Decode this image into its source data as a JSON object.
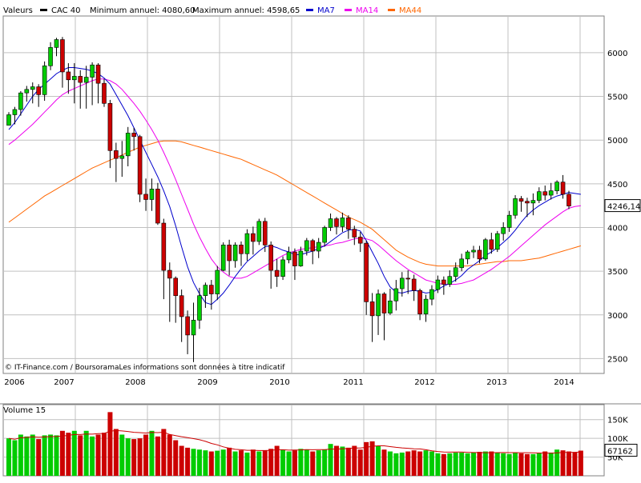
{
  "chart_data": [
    {
      "type": "candlestick",
      "header": {
        "label": "Valeurs",
        "instrument": "CAC 40",
        "min_text": "Minimum annuel: 4080,60",
        "max_text": "Maximum annuel: 4598,65",
        "legend": [
          {
            "name": "MA7",
            "color": "#0000cc"
          },
          {
            "name": "MA14",
            "color": "#ee00ee"
          },
          {
            "name": "MA44",
            "color": "#ff6600"
          }
        ]
      },
      "x_tick_labels": [
        "2006",
        "2007",
        "2008",
        "2009",
        "2010",
        "2011",
        "2012",
        "2013",
        "2014"
      ],
      "y_ticks": [
        2500,
        3000,
        3500,
        4000,
        4500,
        5000,
        5500,
        6000
      ],
      "ylim": [
        2330,
        6420
      ],
      "last_value": 4246.14,
      "last_value_label": "4246,14",
      "credit": "© IT-Finance.com / BoursoramaLes informations sont données à titre indicatif",
      "colors": {
        "up": "#00cc00",
        "down": "#cc0000",
        "grid": "#c0c0c0"
      },
      "candles": [
        [
          5170,
          5290,
          5320,
          5170
        ],
        [
          5290,
          5350,
          5380,
          5180
        ],
        [
          5350,
          5540,
          5560,
          5280
        ],
        [
          5540,
          5580,
          5620,
          5440
        ],
        [
          5580,
          5610,
          5660,
          5420
        ],
        [
          5610,
          5520,
          5640,
          5380
        ],
        [
          5520,
          5850,
          5900,
          5450
        ],
        [
          5850,
          6060,
          6120,
          5800
        ],
        [
          6060,
          6150,
          6170,
          5960
        ],
        [
          6150,
          5780,
          6180,
          5600
        ],
        [
          5780,
          5690,
          5880,
          5530
        ],
        [
          5690,
          5730,
          5880,
          5420
        ],
        [
          5730,
          5660,
          5800,
          5360
        ],
        [
          5660,
          5720,
          5850,
          5360
        ],
        [
          5720,
          5860,
          5890,
          5400
        ],
        [
          5860,
          5650,
          5880,
          5420
        ],
        [
          5650,
          5420,
          5700,
          5380
        ],
        [
          5420,
          4880,
          5460,
          4680
        ],
        [
          4880,
          4790,
          4970,
          4520
        ],
        [
          4790,
          4820,
          4990,
          4580
        ],
        [
          4820,
          5080,
          5150,
          4700
        ],
        [
          5080,
          5040,
          5140,
          4880
        ],
        [
          5040,
          4380,
          5060,
          4290
        ],
        [
          4380,
          4320,
          4560,
          4190
        ],
        [
          4320,
          4440,
          4560,
          4190
        ],
        [
          4440,
          4050,
          4510,
          4030
        ],
        [
          4050,
          3510,
          4100,
          3180
        ],
        [
          3510,
          3420,
          3600,
          2920
        ],
        [
          3420,
          3220,
          3440,
          2910
        ],
        [
          3220,
          2980,
          3290,
          2690
        ],
        [
          2980,
          2770,
          3050,
          2550
        ],
        [
          2770,
          2940,
          3140,
          2460
        ],
        [
          2940,
          3220,
          3310,
          2840
        ],
        [
          3220,
          3340,
          3370,
          3080
        ],
        [
          3340,
          3240,
          3400,
          3060
        ],
        [
          3240,
          3510,
          3560,
          3170
        ],
        [
          3510,
          3800,
          3830,
          3500
        ],
        [
          3800,
          3620,
          3860,
          3450
        ],
        [
          3620,
          3800,
          3830,
          3540
        ],
        [
          3800,
          3700,
          3840,
          3560
        ],
        [
          3700,
          3930,
          3980,
          3620
        ],
        [
          3930,
          3840,
          4010,
          3690
        ],
        [
          3840,
          4070,
          4100,
          3800
        ],
        [
          4070,
          3800,
          4110,
          3720
        ],
        [
          3800,
          3510,
          3840,
          3300
        ],
        [
          3510,
          3440,
          3640,
          3320
        ],
        [
          3440,
          3630,
          3670,
          3400
        ],
        [
          3630,
          3720,
          3780,
          3590
        ],
        [
          3720,
          3560,
          3760,
          3400
        ],
        [
          3560,
          3730,
          3780,
          3550
        ],
        [
          3730,
          3850,
          3880,
          3680
        ],
        [
          3850,
          3730,
          3870,
          3580
        ],
        [
          3730,
          3830,
          3880,
          3650
        ],
        [
          3830,
          4000,
          4020,
          3780
        ],
        [
          4000,
          4100,
          4160,
          3960
        ],
        [
          4100,
          4010,
          4120,
          3920
        ],
        [
          4010,
          4110,
          4170,
          3950
        ],
        [
          4110,
          3980,
          4140,
          3870
        ],
        [
          3980,
          3890,
          4020,
          3800
        ],
        [
          3890,
          3820,
          3950,
          3720
        ],
        [
          3820,
          3150,
          3850,
          3000
        ],
        [
          3150,
          2990,
          3250,
          2690
        ],
        [
          2990,
          3240,
          3290,
          2770
        ],
        [
          3240,
          3020,
          3260,
          2710
        ],
        [
          3020,
          3160,
          3300,
          3000
        ],
        [
          3160,
          3300,
          3400,
          3050
        ],
        [
          3300,
          3420,
          3490,
          3210
        ],
        [
          3420,
          3410,
          3510,
          3240
        ],
        [
          3410,
          3280,
          3460,
          3160
        ],
        [
          3280,
          3010,
          3300,
          2940
        ],
        [
          3010,
          3180,
          3230,
          2920
        ],
        [
          3180,
          3290,
          3340,
          3110
        ],
        [
          3290,
          3400,
          3450,
          3250
        ],
        [
          3400,
          3350,
          3440,
          3230
        ],
        [
          3350,
          3440,
          3510,
          3320
        ],
        [
          3440,
          3540,
          3600,
          3380
        ],
        [
          3540,
          3640,
          3700,
          3500
        ],
        [
          3640,
          3720,
          3740,
          3580
        ],
        [
          3720,
          3740,
          3790,
          3650
        ],
        [
          3740,
          3640,
          3790,
          3590
        ],
        [
          3640,
          3860,
          3880,
          3620
        ],
        [
          3860,
          3750,
          3940,
          3700
        ],
        [
          3750,
          3930,
          3960,
          3720
        ],
        [
          3930,
          4000,
          4060,
          3850
        ],
        [
          4000,
          4140,
          4190,
          3950
        ],
        [
          4140,
          4330,
          4370,
          4100
        ],
        [
          4330,
          4300,
          4360,
          4180
        ],
        [
          4300,
          4280,
          4340,
          4120
        ],
        [
          4280,
          4310,
          4390,
          4140
        ],
        [
          4310,
          4410,
          4460,
          4280
        ],
        [
          4410,
          4370,
          4480,
          4310
        ],
        [
          4370,
          4420,
          4510,
          4320
        ],
        [
          4420,
          4520,
          4540,
          4380
        ],
        [
          4520,
          4380,
          4600,
          4330
        ],
        [
          4380,
          4246,
          4420,
          4210
        ]
      ],
      "ma7": [
        5120,
        5200,
        5300,
        5400,
        5500,
        5580,
        5640,
        5700,
        5760,
        5800,
        5830,
        5830,
        5820,
        5810,
        5790,
        5760,
        5710,
        5640,
        5520,
        5400,
        5280,
        5140,
        5000,
        4860,
        4720,
        4580,
        4420,
        4240,
        4020,
        3780,
        3550,
        3370,
        3240,
        3140,
        3120,
        3180,
        3250,
        3340,
        3440,
        3530,
        3610,
        3670,
        3730,
        3780,
        3790,
        3770,
        3740,
        3720,
        3690,
        3690,
        3710,
        3730,
        3760,
        3790,
        3840,
        3890,
        3940,
        3970,
        3980,
        3960,
        3850,
        3720,
        3590,
        3440,
        3320,
        3260,
        3250,
        3270,
        3280,
        3270,
        3250,
        3260,
        3290,
        3330,
        3360,
        3400,
        3450,
        3520,
        3570,
        3620,
        3680,
        3720,
        3770,
        3830,
        3890,
        3970,
        4060,
        4140,
        4200,
        4250,
        4290,
        4330,
        4360,
        4380,
        4400,
        4390,
        4380
      ],
      "ma14": [
        4950,
        5000,
        5060,
        5120,
        5180,
        5250,
        5320,
        5390,
        5460,
        5520,
        5560,
        5590,
        5620,
        5650,
        5680,
        5700,
        5700,
        5680,
        5640,
        5580,
        5500,
        5420,
        5330,
        5230,
        5120,
        5000,
        4860,
        4710,
        4550,
        4380,
        4210,
        4040,
        3890,
        3760,
        3640,
        3550,
        3490,
        3440,
        3420,
        3420,
        3440,
        3480,
        3520,
        3560,
        3600,
        3640,
        3680,
        3710,
        3730,
        3750,
        3760,
        3770,
        3780,
        3790,
        3800,
        3820,
        3830,
        3850,
        3870,
        3880,
        3870,
        3850,
        3800,
        3740,
        3680,
        3620,
        3570,
        3520,
        3480,
        3440,
        3400,
        3380,
        3360,
        3350,
        3350,
        3350,
        3360,
        3380,
        3400,
        3440,
        3480,
        3520,
        3570,
        3620,
        3670,
        3730,
        3790,
        3850,
        3910,
        3970,
        4030,
        4080,
        4130,
        4180,
        4220,
        4240,
        4250
      ],
      "ma44": [
        4060,
        4110,
        4160,
        4210,
        4260,
        4310,
        4360,
        4400,
        4440,
        4480,
        4520,
        4560,
        4600,
        4640,
        4680,
        4710,
        4740,
        4770,
        4800,
        4830,
        4860,
        4890,
        4920,
        4940,
        4960,
        4980,
        4990,
        4990,
        4990,
        4980,
        4960,
        4940,
        4920,
        4900,
        4880,
        4860,
        4840,
        4820,
        4800,
        4780,
        4750,
        4720,
        4690,
        4660,
        4630,
        4600,
        4560,
        4520,
        4480,
        4440,
        4400,
        4360,
        4320,
        4280,
        4240,
        4200,
        4160,
        4120,
        4090,
        4060,
        4020,
        3980,
        3920,
        3860,
        3800,
        3740,
        3700,
        3660,
        3630,
        3600,
        3580,
        3570,
        3560,
        3560,
        3560,
        3560,
        3560,
        3560,
        3570,
        3580,
        3590,
        3600,
        3610,
        3610,
        3620,
        3620,
        3620,
        3630,
        3640,
        3650,
        3670,
        3690,
        3710,
        3730,
        3750,
        3770,
        3790
      ]
    },
    {
      "type": "bar",
      "label": "Volume 15",
      "y_tick_labels": [
        "50K",
        "100K",
        "150K"
      ],
      "y_ticks": [
        50000,
        100000,
        150000
      ],
      "ylim": [
        0,
        190000
      ],
      "last_value_label": "67162",
      "values": [
        100000,
        95000,
        110000,
        105000,
        110000,
        98000,
        108000,
        110000,
        108000,
        120000,
        115000,
        120000,
        108000,
        120000,
        105000,
        110000,
        115000,
        170000,
        125000,
        110000,
        100000,
        98000,
        100000,
        110000,
        120000,
        105000,
        125000,
        110000,
        95000,
        80000,
        75000,
        72000,
        70000,
        68000,
        65000,
        67000,
        70000,
        75000,
        65000,
        68000,
        62000,
        70000,
        65000,
        68000,
        72000,
        80000,
        70000,
        65000,
        68000,
        72000,
        70000,
        65000,
        68000,
        70000,
        85000,
        80000,
        78000,
        75000,
        80000,
        70000,
        90000,
        92000,
        80000,
        70000,
        65000,
        60000,
        62000,
        65000,
        68000,
        65000,
        68000,
        65000,
        60000,
        58000,
        60000,
        62000,
        62000,
        60000,
        62000,
        64000,
        65000,
        65000,
        62000,
        60000,
        58000,
        62000,
        60000,
        58000,
        58000,
        60000,
        65000,
        62000,
        70000,
        68000,
        65000,
        62000,
        67162
      ],
      "colors": {
        "up": "#00cc00",
        "down": "#cc0000",
        "avg": "#cc0000"
      }
    }
  ]
}
